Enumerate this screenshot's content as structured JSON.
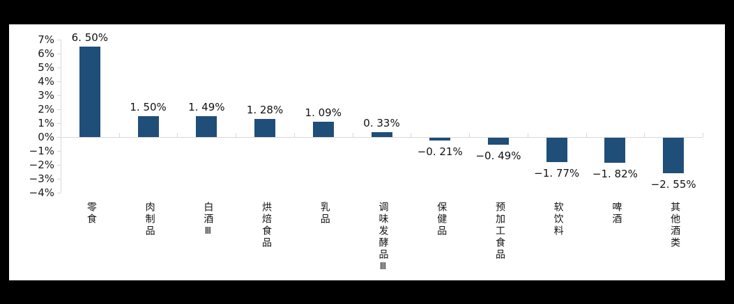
{
  "figure": {
    "frame_background": "#000000",
    "panel_background": "#ffffff"
  },
  "chart_data": {
    "type": "bar",
    "title": "",
    "xlabel": "",
    "ylabel": "",
    "categories": [
      "零食",
      "肉制品",
      "白酒Ⅲ",
      "烘焙食品",
      "乳品",
      "调味发酵品Ⅲ",
      "保健品",
      "预加工食品",
      "软饮料",
      "啤酒",
      "其他酒类"
    ],
    "values": [
      6.5,
      1.5,
      1.49,
      1.28,
      1.09,
      0.33,
      -0.21,
      -0.49,
      -1.77,
      -1.82,
      -2.55
    ],
    "value_labels": [
      "6. 50%",
      "1. 50%",
      "1. 49%",
      "1. 28%",
      "1. 09%",
      "0. 33%",
      "−0. 21%",
      "−0. 49%",
      "−1. 77%",
      "−1. 82%",
      "−2. 55%"
    ],
    "ylim": [
      -4,
      7
    ],
    "ytick_step": 1,
    "ytick_labels": [
      "7%",
      "6%",
      "5%",
      "4%",
      "3%",
      "2%",
      "1%",
      "0%",
      "−1%",
      "−2%",
      "−3%",
      "−4%"
    ],
    "grid": false,
    "legend": "none",
    "bar_color": "#1f4e79",
    "axis_line_color": "#d9d9d9",
    "text_color": "#1a1a1a"
  }
}
